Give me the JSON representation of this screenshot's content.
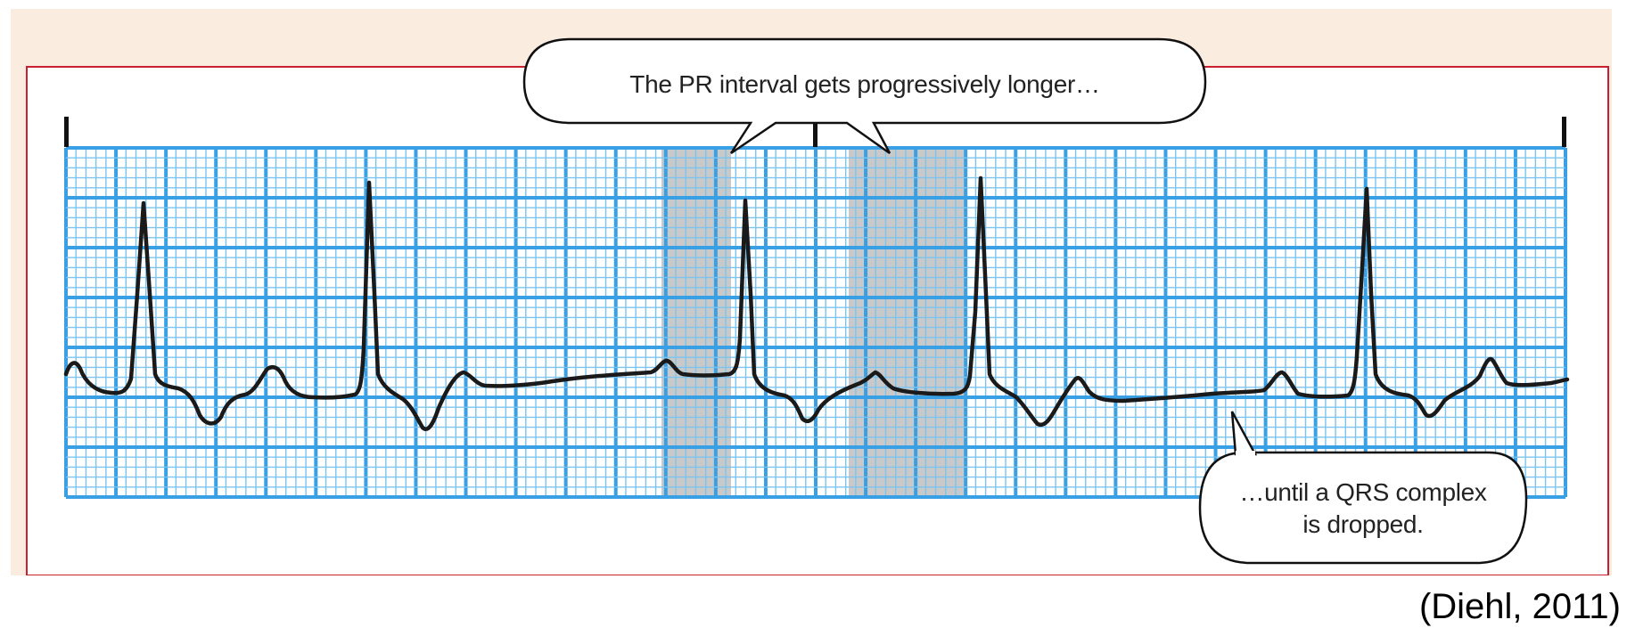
{
  "callouts": {
    "top_text": "The PR interval gets progressively longer…",
    "bottom_line1": "…until a QRS complex",
    "bottom_line2": "is dropped."
  },
  "citation": "(Diehl, 2011)",
  "colors": {
    "panel_background": "#fbece0",
    "frame_border": "#c8202f",
    "grid_major": "#3aa0e6",
    "grid_minor": "#7cc4ef",
    "highlight_band": "#c9c9c9",
    "trace": "#1a1a1a"
  },
  "icons": {
    "marker": "time-marker-icon"
  }
}
